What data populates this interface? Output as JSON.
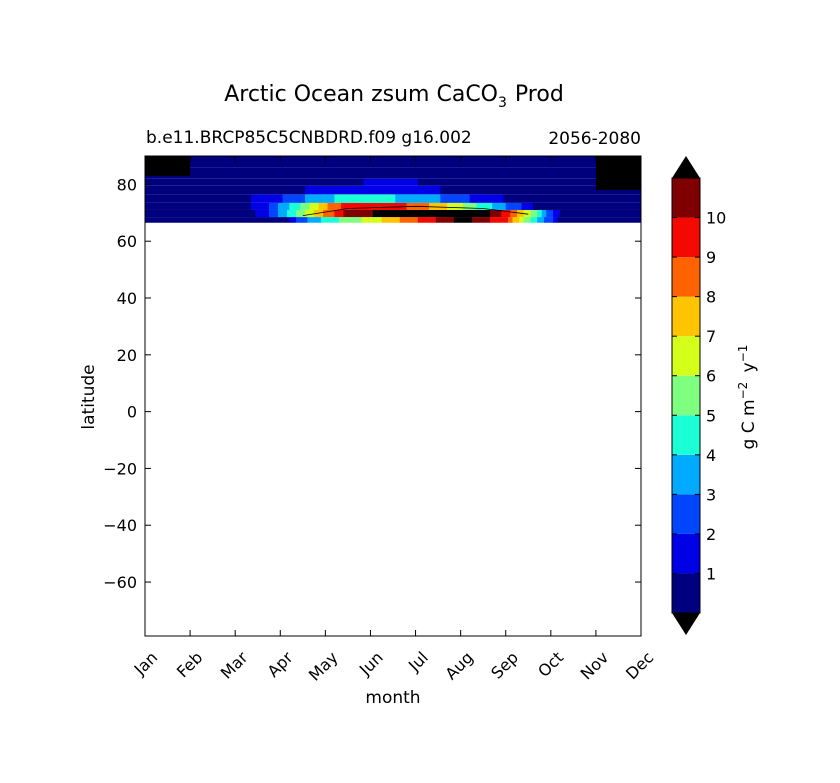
{
  "chart_data": {
    "type": "heatmap",
    "title_main": "Arctic Ocean zsum CaCO",
    "title_subscript": "3",
    "title_tail": "Prod",
    "subtitle_left": "b.e11.BRCP85C5CNBDRD.f09 g16.002",
    "subtitle_right": "2056-2080",
    "xlabel": "month",
    "ylabel": "latitude",
    "x_tick_labels": [
      "Jan",
      "Feb",
      "Mar",
      "Apr",
      "May",
      "Jun",
      "Jul",
      "Aug",
      "Sep",
      "Oct",
      "Nov",
      "Dec"
    ],
    "y_ticks": [
      80,
      60,
      40,
      20,
      0,
      -20,
      -40,
      -60
    ],
    "y_tick_labels": [
      "80",
      "60",
      "40",
      "20",
      "0",
      "−20",
      "−40",
      "−60"
    ],
    "ylim": [
      -79,
      90
    ],
    "data_lat_range": [
      66.5,
      90
    ],
    "colorbar": {
      "label_text": "g C m",
      "label_exp1": "−2",
      "label_mid": " y",
      "label_exp2": "−1",
      "levels": [
        0,
        1,
        2,
        3,
        4,
        5,
        6,
        7,
        8,
        9,
        10,
        11
      ],
      "tick_labels": [
        "1",
        "2",
        "3",
        "4",
        "5",
        "6",
        "7",
        "8",
        "9",
        "10"
      ],
      "colors": [
        "#00007f",
        "#0000e6",
        "#0046ff",
        "#00aaff",
        "#1affd5",
        "#7fff7f",
        "#d4ff1a",
        "#ffc400",
        "#ff6300",
        "#f30900",
        "#7f0000"
      ],
      "over_color": "#000000",
      "under_color": "#000000"
    },
    "field_description_rows": [
      {
        "lat_min": 66.5,
        "lat_max": 68.5,
        "profile": [
          [
            3.0,
            0
          ],
          [
            3.3,
            2.0
          ],
          [
            4.0,
            4.5
          ],
          [
            5.0,
            6.5
          ],
          [
            6.0,
            9.0
          ],
          [
            7.0,
            11.5
          ],
          [
            8.0,
            9.0
          ],
          [
            8.5,
            5.0
          ],
          [
            9.0,
            2.0
          ],
          [
            9.2,
            0
          ]
        ]
      },
      {
        "lat_min": 68.5,
        "lat_max": 71.0,
        "profile": [
          [
            2.0,
            0
          ],
          [
            2.6,
            1.5
          ],
          [
            3.2,
            4.5
          ],
          [
            3.8,
            7.5
          ],
          [
            4.5,
            10.5
          ],
          [
            5.5,
            11.5
          ],
          [
            7.5,
            11.5
          ],
          [
            8.0,
            9.5
          ],
          [
            8.6,
            5.5
          ],
          [
            9.0,
            2.0
          ],
          [
            9.3,
            0
          ]
        ]
      },
      {
        "lat_min": 71.0,
        "lat_max": 73.5,
        "profile": [
          [
            1.8,
            0
          ],
          [
            2.6,
            1.5
          ],
          [
            3.4,
            5.0
          ],
          [
            4.0,
            8.0
          ],
          [
            4.6,
            10.0
          ],
          [
            5.5,
            9.5
          ],
          [
            6.5,
            7.5
          ],
          [
            7.5,
            4.5
          ],
          [
            8.3,
            2.0
          ],
          [
            8.8,
            0
          ]
        ]
      },
      {
        "lat_min": 73.5,
        "lat_max": 76.5,
        "profile": [
          [
            1.0,
            0
          ],
          [
            2.2,
            0.8
          ],
          [
            3.0,
            2.0
          ],
          [
            3.8,
            3.5
          ],
          [
            4.5,
            4.5
          ],
          [
            5.5,
            4.0
          ],
          [
            6.5,
            3.0
          ],
          [
            7.5,
            1.5
          ],
          [
            8.3,
            0.5
          ],
          [
            9.0,
            0
          ]
        ]
      },
      {
        "lat_min": 76.5,
        "lat_max": 79.5,
        "profile": [
          [
            0,
            0
          ],
          [
            2.5,
            0.3
          ],
          [
            3.5,
            1.0
          ],
          [
            4.5,
            1.8
          ],
          [
            5.5,
            1.8
          ],
          [
            6.5,
            1.0
          ],
          [
            7.5,
            0.3
          ],
          [
            9.0,
            0
          ]
        ]
      },
      {
        "lat_min": 79.5,
        "lat_max": 82.0,
        "profile": [
          [
            0,
            0
          ],
          [
            4.0,
            0.2
          ],
          [
            5.0,
            1.2
          ],
          [
            6.0,
            1.0
          ],
          [
            7.0,
            0.2
          ],
          [
            8.0,
            0
          ]
        ]
      },
      {
        "lat_min": 82.0,
        "lat_max": 86.0,
        "profile": [
          [
            0,
            0
          ],
          [
            5.0,
            0.2
          ],
          [
            6.0,
            0.3
          ],
          [
            7.0,
            0
          ]
        ]
      },
      {
        "lat_min": 86.0,
        "lat_max": 90.0,
        "profile": [
          [
            0,
            0
          ]
        ]
      }
    ]
  }
}
